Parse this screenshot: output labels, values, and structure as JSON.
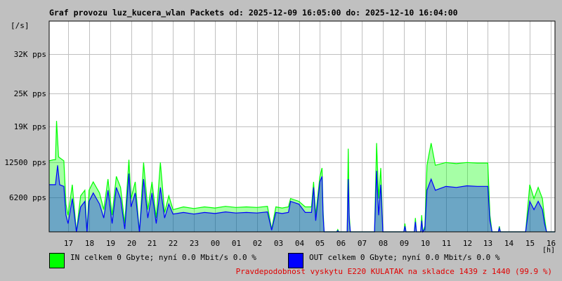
{
  "chart_data": {
    "type": "area",
    "title": "Graf provozu luz_kucera_wlan Packets od: 2025-12-09 16:05:00 do: 2025-12-10 16:04:00",
    "y_unit_label": "[/s]",
    "x_unit_label": "[h]",
    "y_ticks": [
      "6200 pps",
      "12500 pps",
      "19K pps",
      "25K pps",
      "32K pps"
    ],
    "y_tick_values": [
      6200,
      12500,
      19000,
      25000,
      32000
    ],
    "ylim": [
      0,
      38000
    ],
    "x_ticks": [
      "17",
      "18",
      "19",
      "20",
      "21",
      "22",
      "23",
      "00",
      "01",
      "02",
      "03",
      "04",
      "05",
      "06",
      "07",
      "08",
      "09",
      "10",
      "11",
      "12",
      "13",
      "14",
      "15",
      "16"
    ],
    "xlim": [
      16.1,
      40.2
    ],
    "grid": true,
    "series": [
      {
        "name": "IN",
        "color": "#00ff00",
        "points": [
          [
            16.1,
            12800
          ],
          [
            16.3,
            13000
          ],
          [
            16.4,
            13000
          ],
          [
            16.45,
            20000
          ],
          [
            16.55,
            13500
          ],
          [
            16.8,
            12800
          ],
          [
            16.9,
            5000
          ],
          [
            17.0,
            3000
          ],
          [
            17.2,
            8500
          ],
          [
            17.4,
            0
          ],
          [
            17.6,
            6500
          ],
          [
            17.8,
            7500
          ],
          [
            17.9,
            0
          ],
          [
            18.0,
            7500
          ],
          [
            18.2,
            9000
          ],
          [
            18.5,
            7000
          ],
          [
            18.7,
            4000
          ],
          [
            18.9,
            9500
          ],
          [
            19.1,
            3000
          ],
          [
            19.3,
            10000
          ],
          [
            19.5,
            8000
          ],
          [
            19.7,
            1500
          ],
          [
            19.9,
            13000
          ],
          [
            20.0,
            6000
          ],
          [
            20.2,
            9000
          ],
          [
            20.4,
            0
          ],
          [
            20.6,
            12500
          ],
          [
            20.8,
            4000
          ],
          [
            21.0,
            9000
          ],
          [
            21.2,
            2500
          ],
          [
            21.4,
            12500
          ],
          [
            21.6,
            3500
          ],
          [
            21.8,
            6500
          ],
          [
            22.0,
            4000
          ],
          [
            22.5,
            4500
          ],
          [
            23.0,
            4200
          ],
          [
            23.5,
            4500
          ],
          [
            24.0,
            4300
          ],
          [
            24.5,
            4600
          ],
          [
            25.0,
            4400
          ],
          [
            25.5,
            4500
          ],
          [
            26.0,
            4400
          ],
          [
            26.5,
            4600
          ],
          [
            26.7,
            500
          ],
          [
            26.9,
            4500
          ],
          [
            27.2,
            4300
          ],
          [
            27.5,
            4500
          ],
          [
            27.6,
            6000
          ],
          [
            28.0,
            5500
          ],
          [
            28.3,
            4500
          ],
          [
            28.6,
            4500
          ],
          [
            28.7,
            9000
          ],
          [
            28.8,
            3000
          ],
          [
            29.0,
            10000
          ],
          [
            29.1,
            11500
          ],
          [
            29.15,
            4000
          ],
          [
            29.2,
            0
          ],
          [
            29.8,
            0
          ],
          [
            29.85,
            400
          ],
          [
            29.9,
            0
          ],
          [
            30.3,
            0
          ],
          [
            30.35,
            15000
          ],
          [
            30.4,
            3000
          ],
          [
            30.45,
            0
          ],
          [
            31.6,
            0
          ],
          [
            31.7,
            16000
          ],
          [
            31.8,
            6000
          ],
          [
            31.9,
            11500
          ],
          [
            32.0,
            0
          ],
          [
            33.0,
            0
          ],
          [
            33.05,
            1500
          ],
          [
            33.1,
            0
          ],
          [
            33.5,
            0
          ],
          [
            33.55,
            2500
          ],
          [
            33.6,
            0
          ],
          [
            33.8,
            0
          ],
          [
            33.85,
            3000
          ],
          [
            33.9,
            0
          ],
          [
            34.0,
            1000
          ],
          [
            34.1,
            12000
          ],
          [
            34.2,
            14000
          ],
          [
            34.3,
            16000
          ],
          [
            34.5,
            12000
          ],
          [
            35.0,
            12500
          ],
          [
            35.5,
            12300
          ],
          [
            36.0,
            12500
          ],
          [
            36.5,
            12400
          ],
          [
            37.0,
            12400
          ],
          [
            37.1,
            3000
          ],
          [
            37.2,
            0
          ],
          [
            37.5,
            0
          ],
          [
            37.55,
            1000
          ],
          [
            37.6,
            0
          ],
          [
            38.8,
            0
          ],
          [
            39.0,
            8500
          ],
          [
            39.2,
            6000
          ],
          [
            39.4,
            8000
          ],
          [
            39.6,
            6000
          ],
          [
            39.7,
            2500
          ],
          [
            39.8,
            0
          ],
          [
            40.2,
            0
          ]
        ]
      },
      {
        "name": "OUT",
        "color": "#0000ff",
        "points": [
          [
            16.1,
            8500
          ],
          [
            16.4,
            8500
          ],
          [
            16.5,
            12000
          ],
          [
            16.6,
            8500
          ],
          [
            16.8,
            8200
          ],
          [
            16.9,
            3000
          ],
          [
            17.0,
            1500
          ],
          [
            17.2,
            6000
          ],
          [
            17.4,
            0
          ],
          [
            17.6,
            4500
          ],
          [
            17.8,
            5500
          ],
          [
            17.9,
            0
          ],
          [
            18.0,
            5500
          ],
          [
            18.2,
            7000
          ],
          [
            18.5,
            5000
          ],
          [
            18.7,
            2500
          ],
          [
            18.9,
            7500
          ],
          [
            19.1,
            1500
          ],
          [
            19.3,
            8000
          ],
          [
            19.5,
            6000
          ],
          [
            19.7,
            500
          ],
          [
            19.9,
            10500
          ],
          [
            20.0,
            4500
          ],
          [
            20.2,
            7000
          ],
          [
            20.4,
            0
          ],
          [
            20.6,
            9500
          ],
          [
            20.8,
            2500
          ],
          [
            21.0,
            7000
          ],
          [
            21.2,
            1500
          ],
          [
            21.4,
            8000
          ],
          [
            21.6,
            2500
          ],
          [
            21.8,
            5000
          ],
          [
            22.0,
            3200
          ],
          [
            22.5,
            3500
          ],
          [
            23.0,
            3200
          ],
          [
            23.5,
            3500
          ],
          [
            24.0,
            3300
          ],
          [
            24.5,
            3600
          ],
          [
            25.0,
            3400
          ],
          [
            25.5,
            3500
          ],
          [
            26.0,
            3400
          ],
          [
            26.5,
            3600
          ],
          [
            26.7,
            300
          ],
          [
            26.9,
            3500
          ],
          [
            27.2,
            3300
          ],
          [
            27.5,
            3500
          ],
          [
            27.6,
            5500
          ],
          [
            28.0,
            5000
          ],
          [
            28.3,
            3500
          ],
          [
            28.6,
            3500
          ],
          [
            28.7,
            8000
          ],
          [
            28.8,
            2000
          ],
          [
            29.0,
            9000
          ],
          [
            29.1,
            10000
          ],
          [
            29.15,
            3000
          ],
          [
            29.2,
            0
          ],
          [
            29.8,
            0
          ],
          [
            29.85,
            200
          ],
          [
            29.9,
            0
          ],
          [
            30.3,
            0
          ],
          [
            30.35,
            9500
          ],
          [
            30.4,
            2000
          ],
          [
            30.45,
            0
          ],
          [
            31.6,
            0
          ],
          [
            31.7,
            11000
          ],
          [
            31.8,
            3000
          ],
          [
            31.9,
            8500
          ],
          [
            32.0,
            0
          ],
          [
            33.0,
            0
          ],
          [
            33.05,
            1000
          ],
          [
            33.1,
            0
          ],
          [
            33.5,
            0
          ],
          [
            33.55,
            1800
          ],
          [
            33.6,
            0
          ],
          [
            33.8,
            0
          ],
          [
            33.85,
            2000
          ],
          [
            33.9,
            0
          ],
          [
            34.0,
            500
          ],
          [
            34.1,
            7500
          ],
          [
            34.2,
            8500
          ],
          [
            34.3,
            9500
          ],
          [
            34.5,
            7500
          ],
          [
            35.0,
            8200
          ],
          [
            35.5,
            8000
          ],
          [
            36.0,
            8300
          ],
          [
            36.5,
            8200
          ],
          [
            37.0,
            8200
          ],
          [
            37.1,
            2000
          ],
          [
            37.2,
            0
          ],
          [
            37.5,
            0
          ],
          [
            37.55,
            700
          ],
          [
            37.6,
            0
          ],
          [
            38.8,
            0
          ],
          [
            39.0,
            5500
          ],
          [
            39.2,
            4000
          ],
          [
            39.4,
            5500
          ],
          [
            39.6,
            4000
          ],
          [
            39.7,
            1500
          ],
          [
            39.8,
            0
          ],
          [
            40.2,
            0
          ]
        ]
      }
    ]
  },
  "legend": {
    "in_text": "IN celkem 0 Gbyte; nyní   0.0 Mbit/s 0.0 %",
    "out_text": "OUT celkem 0 Gbyte; nyní   0.0 Mbit/s 0.0 %",
    "in_color": "#00ff00",
    "out_color": "#0000ff"
  },
  "footer_note": "Pravdepodobnost vyskytu E220 KULATAK na skladce 1439 z 1440 (99.9 %)"
}
